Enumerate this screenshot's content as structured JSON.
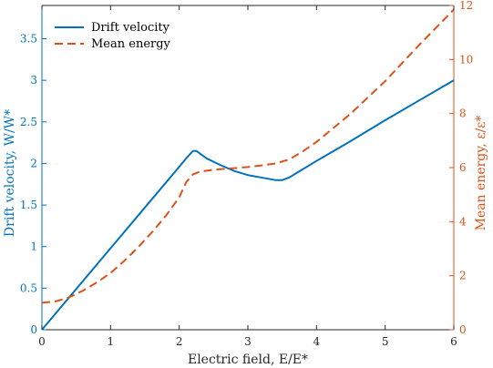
{
  "chart_data": {
    "type": "line",
    "xlabel": "Electric field, E/E*",
    "ylabel_left": "Drift velocity, W/W*",
    "ylabel_right": "Mean energy, ε/ε*",
    "xlim": [
      0,
      6
    ],
    "ylim_left": [
      0,
      3.9
    ],
    "ylim_right": [
      0,
      12
    ],
    "x_ticks": [
      0,
      1,
      2,
      3,
      4,
      5,
      6
    ],
    "y_left_ticks": [
      0,
      0.5,
      1,
      1.5,
      2,
      2.5,
      3,
      3.5
    ],
    "y_right_ticks": [
      0,
      2,
      4,
      6,
      8,
      10,
      12
    ],
    "grid": false,
    "legend_position": "top-left",
    "colors": {
      "drift": "#0072BD",
      "energy": "#D95319"
    },
    "series": [
      {
        "name": "Drift velocity",
        "axis": "left",
        "style": "solid",
        "x": [
          0,
          0.5,
          1.0,
          1.5,
          2.0,
          2.1,
          2.2,
          2.25,
          2.3,
          2.4,
          2.6,
          2.8,
          3.0,
          3.2,
          3.4,
          3.5,
          3.6,
          3.7,
          4.0,
          4.5,
          5.0,
          5.5,
          6.0
        ],
        "y": [
          0,
          0.49,
          0.98,
          1.47,
          1.96,
          2.06,
          2.15,
          2.15,
          2.12,
          2.06,
          1.98,
          1.91,
          1.86,
          1.83,
          1.8,
          1.8,
          1.83,
          1.88,
          2.03,
          2.27,
          2.52,
          2.76,
          3.0
        ]
      },
      {
        "name": "Mean energy",
        "axis": "right",
        "style": "dashed",
        "x": [
          0,
          0.2,
          0.4,
          0.6,
          0.8,
          1.0,
          1.2,
          1.4,
          1.6,
          1.8,
          2.0,
          2.1,
          2.2,
          2.3,
          2.5,
          2.8,
          3.0,
          3.2,
          3.4,
          3.6,
          3.8,
          4.0,
          4.5,
          5.0,
          5.5,
          6.0
        ],
        "y": [
          1.0,
          1.05,
          1.2,
          1.45,
          1.75,
          2.1,
          2.55,
          3.05,
          3.6,
          4.2,
          4.9,
          5.45,
          5.75,
          5.85,
          5.92,
          5.98,
          6.02,
          6.08,
          6.15,
          6.3,
          6.6,
          6.95,
          8.0,
          9.2,
          10.55,
          11.85
        ]
      }
    ]
  }
}
